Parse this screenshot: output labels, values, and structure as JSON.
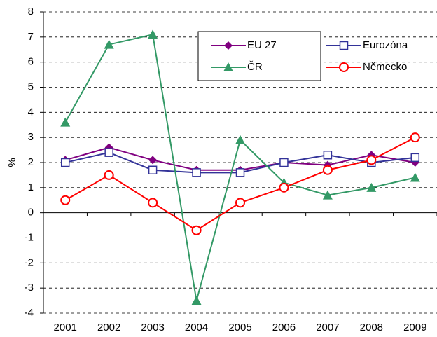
{
  "chart_data": {
    "type": "line",
    "y_label": "%",
    "categories": [
      "2001",
      "2002",
      "2003",
      "2004",
      "2005",
      "2006",
      "2007",
      "2008",
      "2009"
    ],
    "series": [
      {
        "name": "EU 27",
        "color": "#800080",
        "marker": "diamond",
        "values": [
          2.1,
          2.6,
          2.1,
          1.7,
          1.7,
          2.0,
          1.9,
          2.3,
          2.0
        ]
      },
      {
        "name": "Eurozóna",
        "color": "#333399",
        "marker": "square",
        "values": [
          2.0,
          2.4,
          1.7,
          1.6,
          1.6,
          2.0,
          2.3,
          2.0,
          2.2
        ]
      },
      {
        "name": "ČR",
        "color": "#339966",
        "marker": "triangle",
        "values": [
          3.6,
          6.7,
          7.1,
          -3.5,
          2.9,
          1.2,
          0.7,
          1.0,
          1.4
        ]
      },
      {
        "name": "Německo",
        "color": "#ff0000",
        "marker": "circle",
        "values": [
          0.5,
          1.5,
          0.4,
          -0.7,
          0.4,
          1.0,
          1.7,
          2.1,
          3.0
        ]
      }
    ],
    "ylim": [
      -4,
      8
    ],
    "yticks": [
      -4,
      -3,
      -2,
      -1,
      0,
      1,
      2,
      3,
      4,
      5,
      6,
      7,
      8
    ],
    "grid": true,
    "legend": "top-right"
  }
}
